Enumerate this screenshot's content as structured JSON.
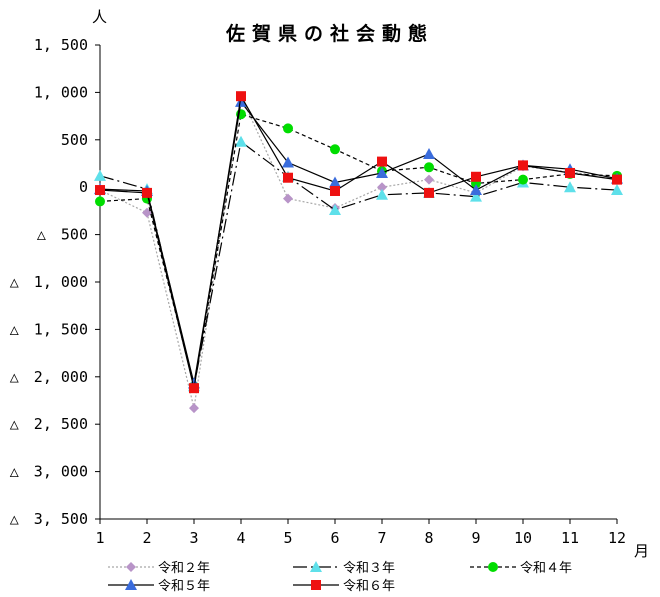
{
  "chart_data": {
    "type": "line",
    "title": "佐賀県の社会動態",
    "y_unit": "人",
    "x_unit": "月",
    "x": [
      1,
      2,
      3,
      4,
      5,
      6,
      7,
      8,
      9,
      10,
      11,
      12
    ],
    "x_tick_labels": [
      "1",
      "2",
      "3",
      "4",
      "5",
      "6",
      "7",
      "8",
      "9",
      "10",
      "11",
      "12"
    ],
    "ylim": [
      -3500,
      1500
    ],
    "y_ticks": [
      1500,
      1000,
      500,
      0,
      -500,
      -1000,
      -1500,
      -2000,
      -2500,
      -3000,
      -3500
    ],
    "y_tick_labels": [
      "1, 500",
      "1, 000",
      "500",
      "0",
      "△　500",
      "△　1, 000",
      "△　1, 500",
      "△　2, 000",
      "△　2, 500",
      "△　3, 000",
      "△　3, 500"
    ],
    "grid": false,
    "legend_position": "bottom",
    "series": [
      {
        "name": "令和２年",
        "color": "#b894c8",
        "line_color": "#a8a8a8",
        "dash": "2,2",
        "marker": "diamond",
        "values": [
          -30,
          -270,
          -2330,
          960,
          -120,
          -220,
          0,
          80,
          -60,
          220,
          160,
          100
        ]
      },
      {
        "name": "令和３年",
        "color": "#5ee0ea",
        "line_color": "#000000",
        "dash": "14,4,2,4",
        "marker": "triangle",
        "values": [
          120,
          -20,
          -2100,
          480,
          110,
          -240,
          -80,
          -60,
          -100,
          50,
          0,
          -30
        ]
      },
      {
        "name": "令和４年",
        "color": "#00dd00",
        "line_color": "#000000",
        "dash": "4,3",
        "marker": "circle",
        "values": [
          -150,
          -120,
          -2100,
          770,
          620,
          400,
          170,
          210,
          40,
          80,
          140,
          120
        ]
      },
      {
        "name": "令和５年",
        "color": "#3a6cdc",
        "line_color": "#000000",
        "dash": "",
        "marker": "triangle",
        "values": [
          -20,
          -40,
          -2070,
          900,
          260,
          50,
          150,
          350,
          -30,
          230,
          190,
          90
        ]
      },
      {
        "name": "令和６年",
        "color": "#ee1111",
        "line_color": "#000000",
        "dash": "",
        "marker": "square",
        "values": [
          -30,
          -60,
          -2120,
          960,
          100,
          -40,
          270,
          -60,
          110,
          230,
          150,
          80
        ]
      }
    ]
  }
}
